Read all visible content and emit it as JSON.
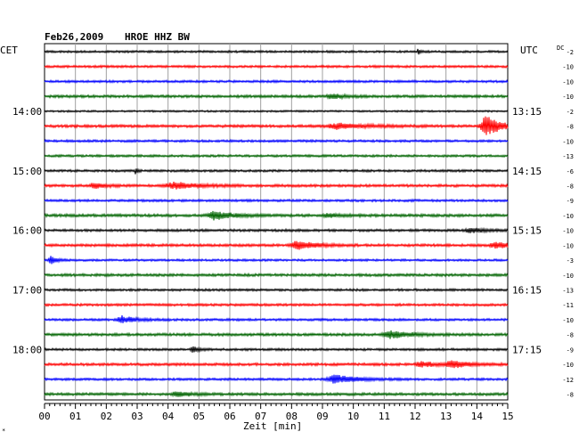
{
  "header": {
    "date": "Feb26,2009",
    "station": "HROE HHZ BW",
    "left_zone": "CET",
    "right_zone": "UTC",
    "dc_label": "DC"
  },
  "chart_data": {
    "type": "line",
    "title": "Feb26,2009 HROE HHZ BW",
    "xlabel": "Zeit [min]",
    "xlim": [
      0,
      15
    ],
    "x_ticks": [
      "00",
      "01",
      "02",
      "03",
      "04",
      "05",
      "06",
      "07",
      "08",
      "09",
      "10",
      "11",
      "12",
      "13",
      "14",
      "15"
    ],
    "grid": true,
    "trace_colors": [
      "#000000",
      "#ff0000",
      "#0000ff",
      "#006400"
    ],
    "left_hour_labels": [
      {
        "trace": 4,
        "label": "14:00"
      },
      {
        "trace": 8,
        "label": "15:00"
      },
      {
        "trace": 12,
        "label": "16:00"
      },
      {
        "trace": 16,
        "label": "17:00"
      },
      {
        "trace": 20,
        "label": "18:00"
      }
    ],
    "right_hour_labels": [
      {
        "trace": 4,
        "label": "13:15"
      },
      {
        "trace": 8,
        "label": "14:15"
      },
      {
        "trace": 12,
        "label": "15:15"
      },
      {
        "trace": 16,
        "label": "16:15"
      },
      {
        "trace": 20,
        "label": "17:15"
      }
    ],
    "dc_offsets": [
      "-2",
      "-10",
      "-10",
      "-10",
      "-2",
      "-8",
      "-10",
      "-13",
      "-6",
      "-8",
      "-9",
      "-10",
      "-10",
      "-10",
      "-3",
      "-10",
      "-13",
      "-11",
      "-10",
      "-8",
      "-9",
      "-10",
      "-12",
      "-8"
    ],
    "traces": [
      {
        "noise": 1.2,
        "events": [
          {
            "t": 12.1,
            "amp": 4,
            "dur": 0.05
          }
        ]
      },
      {
        "noise": 1.3,
        "events": []
      },
      {
        "noise": 1.3,
        "events": []
      },
      {
        "noise": 1.5,
        "events": [
          {
            "t": 9.3,
            "amp": 2.5,
            "dur": 0.4
          }
        ]
      },
      {
        "noise": 1.0,
        "events": []
      },
      {
        "noise": 1.5,
        "events": [
          {
            "t": 9.5,
            "amp": 3,
            "dur": 0.8
          },
          {
            "t": 14.3,
            "amp": 12,
            "dur": 0.4
          }
        ]
      },
      {
        "noise": 1.3,
        "events": []
      },
      {
        "noise": 1.3,
        "events": []
      },
      {
        "noise": 1.3,
        "events": [
          {
            "t": 2.95,
            "amp": 4,
            "dur": 0.05
          }
        ]
      },
      {
        "noise": 1.5,
        "events": [
          {
            "t": 1.6,
            "amp": 3,
            "dur": 0.3
          },
          {
            "t": 4.2,
            "amp": 3.5,
            "dur": 0.7
          }
        ]
      },
      {
        "noise": 1.3,
        "events": []
      },
      {
        "noise": 1.6,
        "events": [
          {
            "t": 5.5,
            "amp": 4.5,
            "dur": 0.5
          },
          {
            "t": 9.2,
            "amp": 2.2,
            "dur": 0.4
          }
        ]
      },
      {
        "noise": 1.4,
        "events": [
          {
            "t": 13.8,
            "amp": 2.5,
            "dur": 0.4
          }
        ]
      },
      {
        "noise": 1.5,
        "events": [
          {
            "t": 8.2,
            "amp": 4.5,
            "dur": 0.5
          },
          {
            "t": 14.6,
            "amp": 3.5,
            "dur": 0.4
          }
        ]
      },
      {
        "noise": 1.2,
        "events": [
          {
            "t": 0.2,
            "amp": 5,
            "dur": 0.15
          }
        ]
      },
      {
        "noise": 1.5,
        "events": []
      },
      {
        "noise": 1.3,
        "events": []
      },
      {
        "noise": 1.4,
        "events": []
      },
      {
        "noise": 1.3,
        "events": [
          {
            "t": 2.5,
            "amp": 4,
            "dur": 0.4
          }
        ]
      },
      {
        "noise": 1.5,
        "events": [
          {
            "t": 11.2,
            "amp": 4,
            "dur": 0.6
          }
        ]
      },
      {
        "noise": 1.3,
        "events": [
          {
            "t": 4.8,
            "amp": 3,
            "dur": 0.2
          }
        ]
      },
      {
        "noise": 1.5,
        "events": [
          {
            "t": 12.2,
            "amp": 3,
            "dur": 0.4
          },
          {
            "t": 13.2,
            "amp": 4,
            "dur": 0.5
          }
        ]
      },
      {
        "noise": 1.3,
        "events": [
          {
            "t": 9.4,
            "amp": 5,
            "dur": 0.6
          }
        ]
      },
      {
        "noise": 1.5,
        "events": [
          {
            "t": 4.3,
            "amp": 2.5,
            "dur": 0.4
          }
        ]
      }
    ]
  }
}
